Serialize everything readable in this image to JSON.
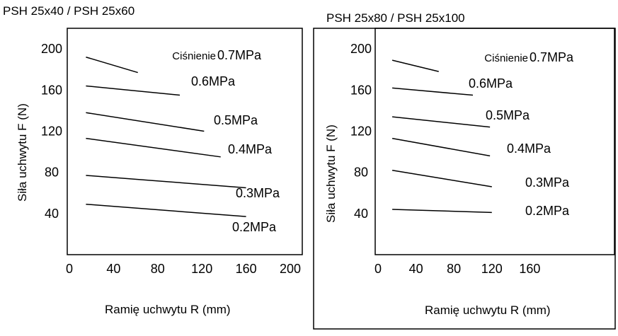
{
  "chart_data": [
    {
      "type": "line",
      "title": "PSH 25x40 / PSH 25x60",
      "xlabel": "Ramię uchwytu R (mm)",
      "ylabel": "Siła uchwytu  F (N)",
      "xlim": [
        0,
        200
      ],
      "ylim": [
        0,
        220
      ],
      "xticks": [
        "0",
        "40",
        "80",
        "120",
        "160",
        "200"
      ],
      "yticks": [
        "40",
        "80",
        "120",
        "160",
        "200"
      ],
      "grid": false,
      "series": [
        {
          "name": "0.7MPa",
          "prefix": "Ciśnienie",
          "x": [
            15,
            62
          ],
          "y": [
            192,
            177
          ]
        },
        {
          "name": "0.6MPa",
          "x": [
            15,
            100
          ],
          "y": [
            164,
            155
          ]
        },
        {
          "name": "0.5MPa",
          "x": [
            15,
            122
          ],
          "y": [
            138,
            120
          ]
        },
        {
          "name": "0.4MPa",
          "x": [
            15,
            137
          ],
          "y": [
            113,
            95
          ]
        },
        {
          "name": "0.3MPa",
          "x": [
            15,
            160
          ],
          "y": [
            77,
            65
          ]
        },
        {
          "name": "0.2MPa",
          "x": [
            15,
            160
          ],
          "y": [
            49,
            37
          ]
        }
      ]
    },
    {
      "type": "line",
      "title": "PSH 25x80 / PSH 25x100",
      "xlabel": "Ramię uchwytu R (mm)",
      "ylabel": "Siła uchwytu  F (N)",
      "xlim": [
        0,
        200
      ],
      "ylim": [
        0,
        220
      ],
      "xticks": [
        "0",
        "40",
        "80",
        "120",
        "160"
      ],
      "yticks": [
        "40",
        "80",
        "120",
        "160",
        "200"
      ],
      "grid": false,
      "series": [
        {
          "name": "0.7MPa",
          "prefix": "Ciśnienie",
          "x": [
            15,
            64
          ],
          "y": [
            189,
            178
          ]
        },
        {
          "name": "0.6MPa",
          "x": [
            15,
            100
          ],
          "y": [
            162,
            155
          ]
        },
        {
          "name": "0.5MPa",
          "x": [
            15,
            118
          ],
          "y": [
            134,
            124
          ]
        },
        {
          "name": "0.4MPa",
          "x": [
            15,
            118
          ],
          "y": [
            113,
            96
          ]
        },
        {
          "name": "0.3MPa",
          "x": [
            15,
            120
          ],
          "y": [
            82,
            66
          ]
        },
        {
          "name": "0.2MPa",
          "x": [
            15,
            120
          ],
          "y": [
            44,
            41
          ]
        }
      ]
    }
  ]
}
